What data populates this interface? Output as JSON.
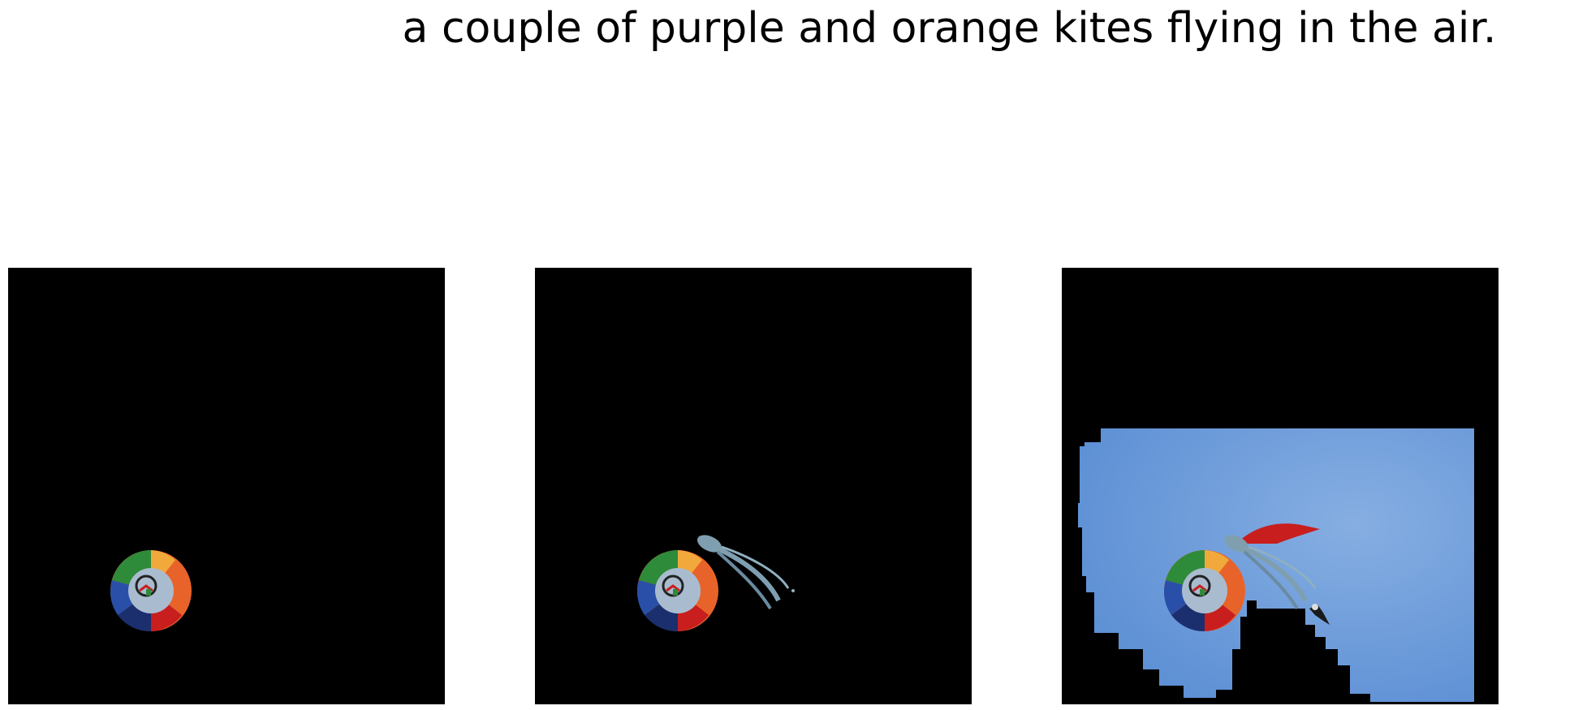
{
  "caption": "a couple of purple and orange kites flying in the air.",
  "colors": {
    "background": "#ffffff",
    "mask": "#000000",
    "sky": "#5b8ed4",
    "sky_light": "#86aee2",
    "kite_orange": "#e8632a",
    "kite_red": "#c81e1e",
    "kite_green": "#2e8b3a",
    "kite_blue": "#2a4fa8",
    "kite_center": "#a9bccf",
    "tail": "#7f9fb0"
  },
  "panels": [
    {
      "name": "mask-panel-1",
      "regions": [
        "round-kite"
      ]
    },
    {
      "name": "mask-panel-2",
      "regions": [
        "round-kite",
        "squid-kite"
      ]
    },
    {
      "name": "mask-panel-3",
      "regions": [
        "round-kite",
        "squid-kite",
        "sky",
        "bird"
      ]
    }
  ]
}
